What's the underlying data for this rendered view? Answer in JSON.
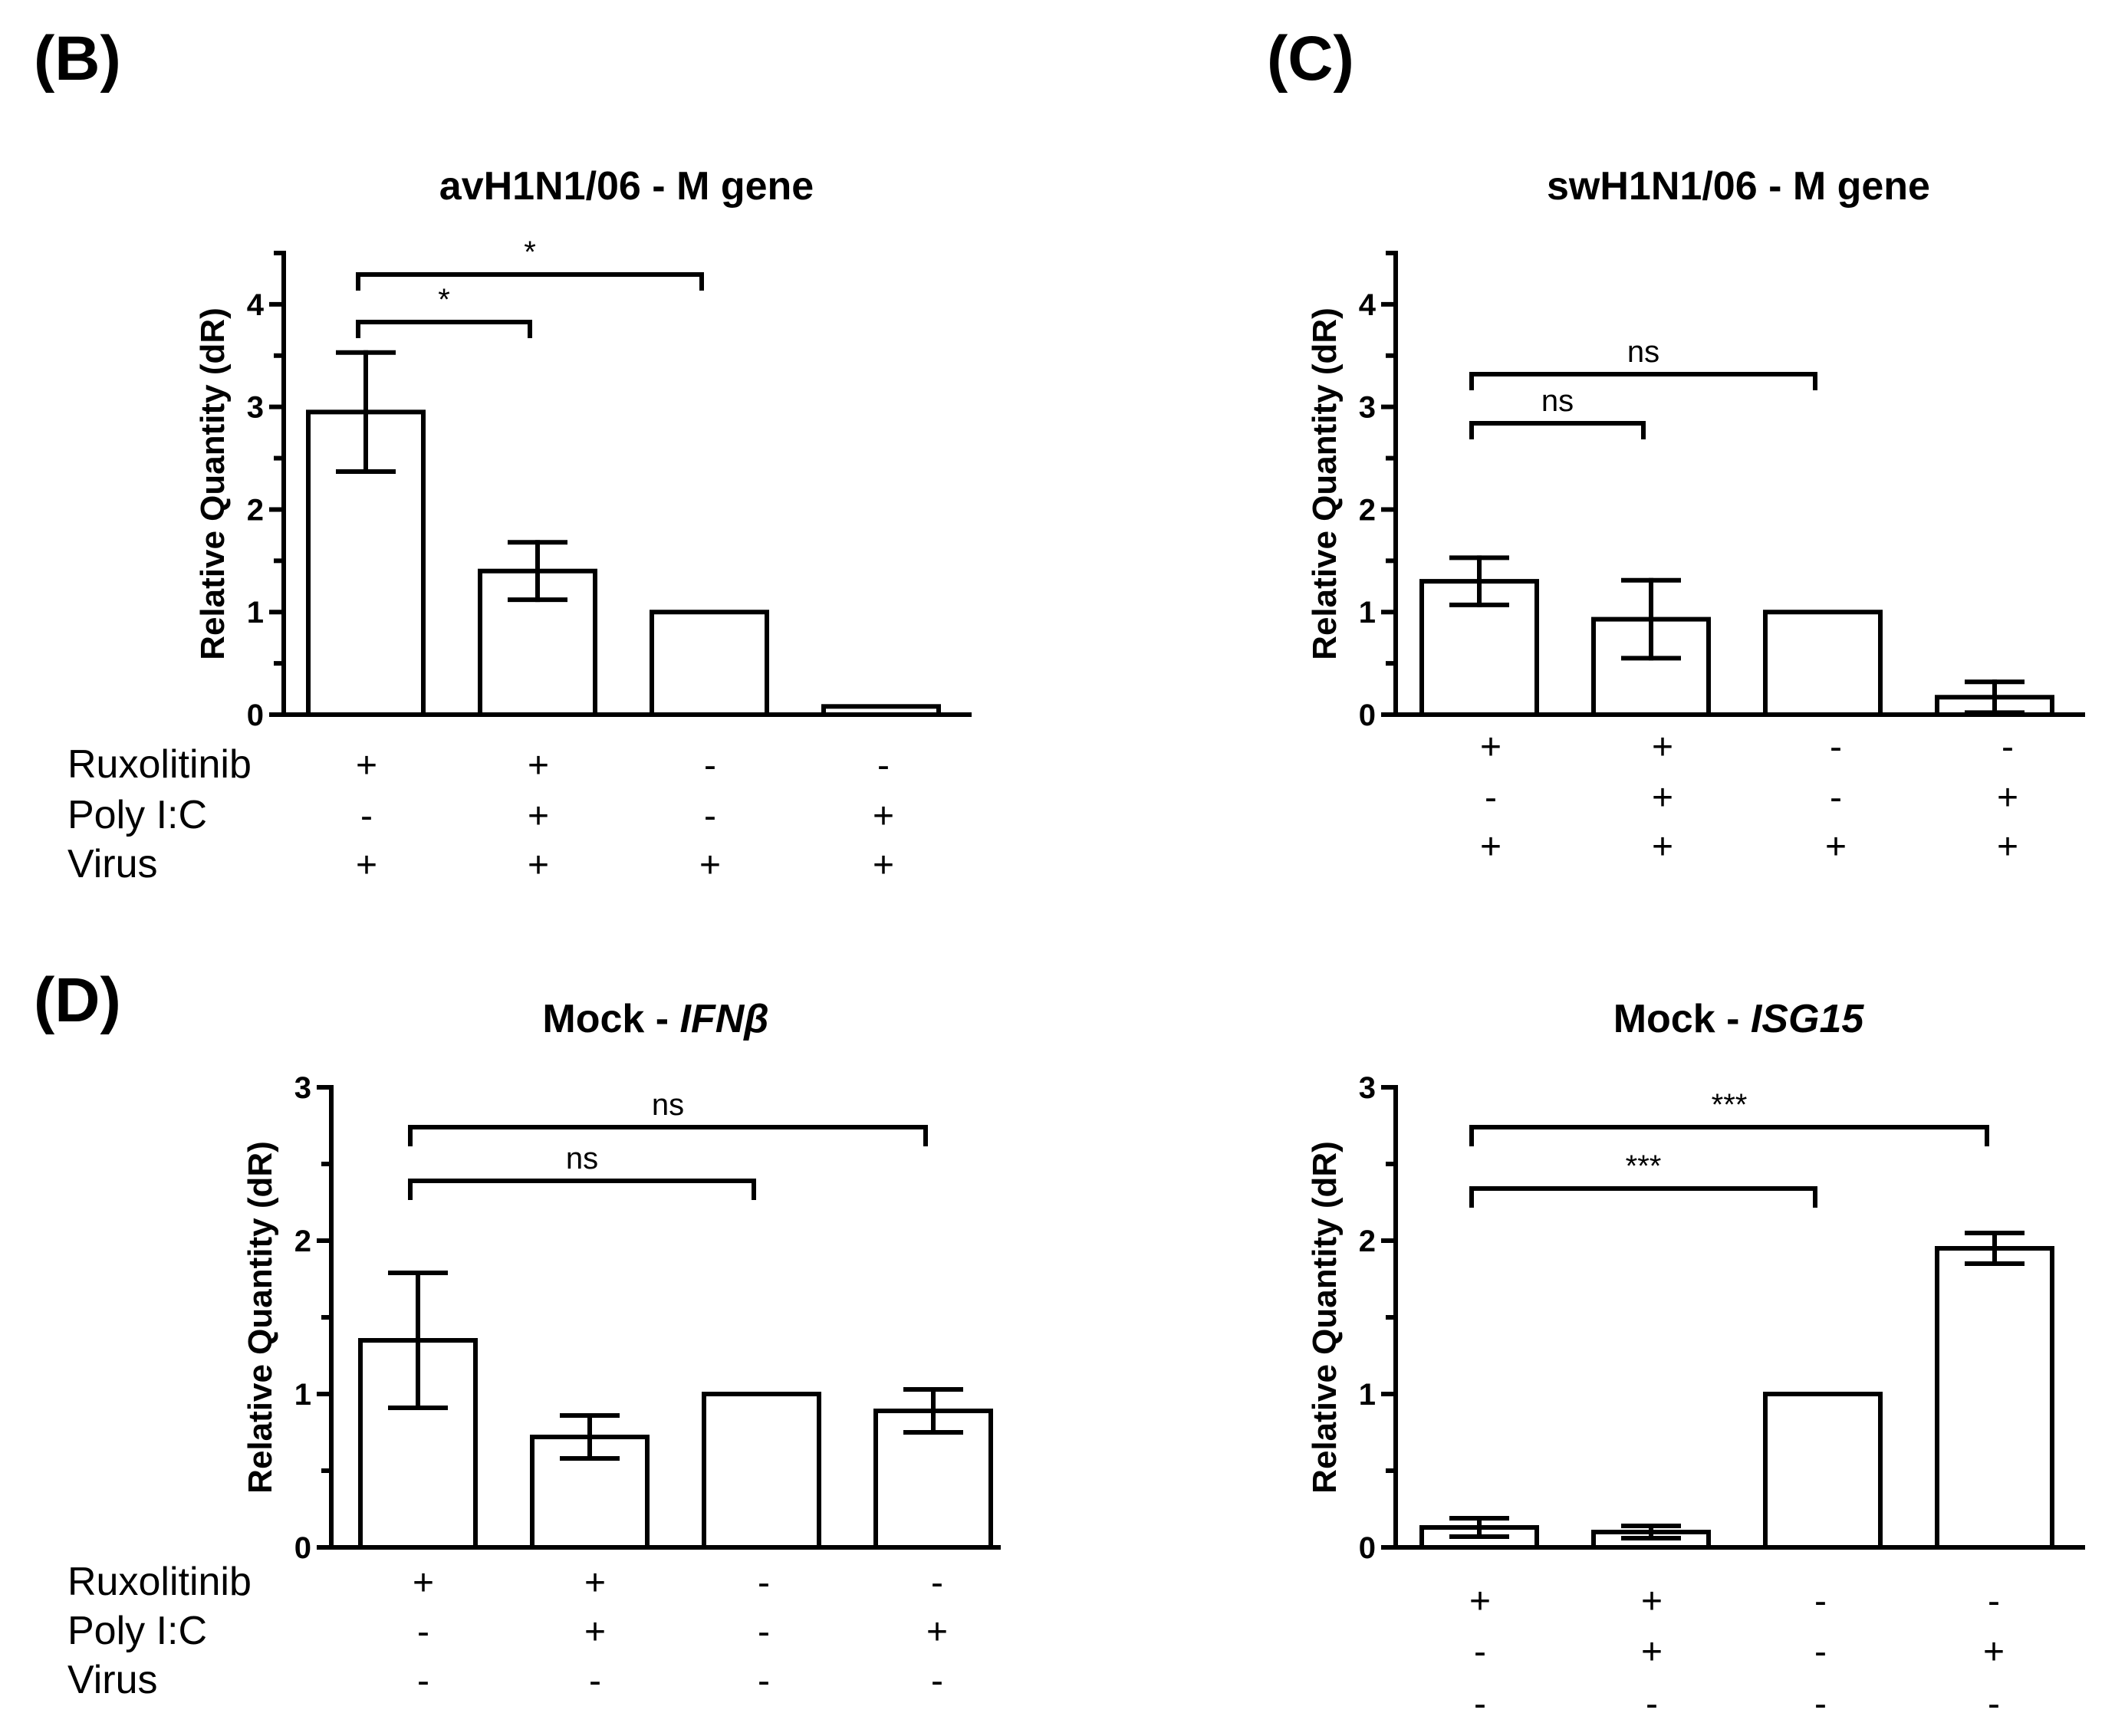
{
  "figure": {
    "panels": [
      {
        "id": "B",
        "label": "(B)"
      },
      {
        "id": "C",
        "label": "(C)"
      },
      {
        "id": "D",
        "label": "(D)"
      }
    ]
  },
  "chart_data": [
    {
      "id": "avH1N1_M",
      "type": "bar",
      "title": "avH1N1/06 - M gene",
      "title_parts": [
        {
          "text": "avH1N1/06 - M gene",
          "italic": false
        }
      ],
      "ylabel": "Relative Quantity (dR)",
      "xlabel": "",
      "ylim": [
        0,
        4.5
      ],
      "yticks": [
        0,
        1,
        2,
        3,
        4
      ],
      "values": [
        2.95,
        1.4,
        1.0,
        0.08
      ],
      "errors": [
        0.58,
        0.28,
        0.0,
        0.0
      ],
      "significance": [
        {
          "from": 0,
          "to": 1,
          "label": "*"
        },
        {
          "from": 0,
          "to": 2,
          "label": "*"
        }
      ],
      "condition_names": [
        "Ruxolitinib",
        "Poly I:C",
        "Virus"
      ],
      "conditions": [
        [
          "+",
          "+",
          "-",
          "-"
        ],
        [
          "-",
          "+",
          "-",
          "+"
        ],
        [
          "+",
          "+",
          "+",
          "+"
        ]
      ]
    },
    {
      "id": "swH1N1_M",
      "type": "bar",
      "title": "swH1N1/06 - M gene",
      "title_parts": [
        {
          "text": "swH1N1/06 - M gene",
          "italic": false
        }
      ],
      "ylabel": "Relative Quantity (dR)",
      "xlabel": "",
      "ylim": [
        0,
        4.5
      ],
      "yticks": [
        0,
        1,
        2,
        3,
        4
      ],
      "values": [
        1.3,
        0.93,
        1.0,
        0.17
      ],
      "errors": [
        0.23,
        0.38,
        0.0,
        0.15
      ],
      "significance": [
        {
          "from": 0,
          "to": 1,
          "label": "ns"
        },
        {
          "from": 0,
          "to": 2,
          "label": "ns"
        }
      ],
      "condition_names": [],
      "conditions": [
        [
          "+",
          "+",
          "-",
          "-"
        ],
        [
          "-",
          "+",
          "-",
          "+"
        ],
        [
          "+",
          "+",
          "+",
          "+"
        ]
      ]
    },
    {
      "id": "mock_IFNb",
      "type": "bar",
      "title": "Mock - IFNβ",
      "title_parts": [
        {
          "text": "Mock - ",
          "italic": false
        },
        {
          "text": "IFNβ",
          "italic": true
        }
      ],
      "ylabel": "Relative Quantity (dR)",
      "xlabel": "",
      "ylim": [
        0,
        3
      ],
      "yticks": [
        0,
        1,
        2,
        3
      ],
      "values": [
        1.35,
        0.72,
        1.0,
        0.89
      ],
      "errors": [
        0.44,
        0.14,
        0.0,
        0.14
      ],
      "significance": [
        {
          "from": 0,
          "to": 2,
          "label": "ns"
        },
        {
          "from": 0,
          "to": 3,
          "label": "ns"
        }
      ],
      "condition_names": [
        "Ruxolitinib",
        "Poly I:C",
        "Virus"
      ],
      "conditions": [
        [
          "+",
          "+",
          "-",
          "-"
        ],
        [
          "-",
          "+",
          "-",
          "+"
        ],
        [
          "-",
          "-",
          "-",
          "-"
        ]
      ]
    },
    {
      "id": "mock_ISG15",
      "type": "bar",
      "title": "Mock - ISG15",
      "title_parts": [
        {
          "text": "Mock - ",
          "italic": false
        },
        {
          "text": "ISG15",
          "italic": true
        }
      ],
      "ylabel": "Relative Quantity (dR)",
      "xlabel": "",
      "ylim": [
        0,
        3
      ],
      "yticks": [
        0,
        1,
        2,
        3
      ],
      "values": [
        0.13,
        0.1,
        1.0,
        1.95
      ],
      "errors": [
        0.06,
        0.04,
        0.0,
        0.1
      ],
      "significance": [
        {
          "from": 0,
          "to": 2,
          "label": "***"
        },
        {
          "from": 0,
          "to": 3,
          "label": "***"
        }
      ],
      "condition_names": [],
      "conditions": [
        [
          "+",
          "+",
          "-",
          "-"
        ],
        [
          "-",
          "+",
          "-",
          "+"
        ],
        [
          "-",
          "-",
          "-",
          "-"
        ]
      ]
    }
  ]
}
